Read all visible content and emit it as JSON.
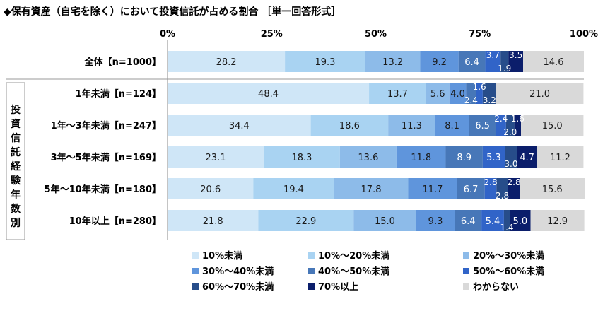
{
  "title": "◆保有資産（自宅を除く）において投資信託が占める割合 ［単一回答形式］",
  "chart_data": {
    "type": "bar",
    "stacked": true,
    "orientation": "horizontal",
    "title": "◆保有資産（自宅を除く）において投資信託が占める割合 ［単一回答形式］",
    "x_ticks": [
      "0%",
      "25%",
      "50%",
      "75%",
      "100%"
    ],
    "xlim": [
      0,
      100
    ],
    "side_label": "投資信託経験年数別",
    "categories": [
      "全体【n=1000】",
      "1年未満【n=124】",
      "1年～3年未満【n=247】",
      "3年～5年未満【n=169】",
      "5年～10年未満【n=180】",
      "10年以上【n=280】"
    ],
    "series": [
      {
        "name": "10%未満",
        "color": "#cfe6f7",
        "values": [
          28.2,
          48.4,
          34.4,
          23.1,
          20.6,
          21.8
        ]
      },
      {
        "name": "10%～20%未満",
        "color": "#a9d3f2",
        "values": [
          19.3,
          13.7,
          18.6,
          18.3,
          19.4,
          22.9
        ]
      },
      {
        "name": "20%～30%未満",
        "color": "#8dbbe9",
        "values": [
          13.2,
          5.6,
          11.3,
          13.6,
          17.8,
          15.0
        ]
      },
      {
        "name": "30%～40%未満",
        "color": "#5f95dc",
        "values": [
          9.2,
          4.0,
          8.1,
          11.8,
          11.7,
          9.3
        ]
      },
      {
        "name": "40%～50%未満",
        "color": "#4777b8",
        "values": [
          6.4,
          2.4,
          6.5,
          8.9,
          6.7,
          6.4
        ]
      },
      {
        "name": "50%～60%未満",
        "color": "#3164c8",
        "values": [
          3.7,
          1.6,
          2.4,
          5.3,
          2.8,
          5.4
        ]
      },
      {
        "name": "60%～70%未満",
        "color": "#274d8a",
        "values": [
          1.9,
          3.2,
          2.0,
          3.0,
          2.8,
          1.4
        ]
      },
      {
        "name": "70%以上",
        "color": "#0b1e6b",
        "values": [
          3.5,
          0.0,
          1.6,
          4.7,
          2.8,
          5.0
        ]
      },
      {
        "name": "わからない",
        "color": "#d9d9d9",
        "values": [
          14.6,
          21.0,
          15.0,
          11.2,
          15.6,
          12.9
        ]
      }
    ]
  }
}
